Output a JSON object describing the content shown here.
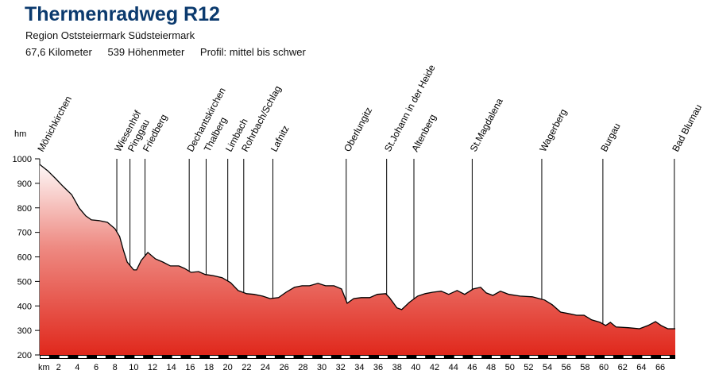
{
  "header": {
    "title": "Thermenradweg R12",
    "region": "Region Oststeiermark Südsteiermark",
    "distance": "67,6 Kilometer",
    "ascent": "539 Höhenmeter",
    "profile": "Profil: mittel bis schwer"
  },
  "chart_data": {
    "type": "area",
    "title": "Thermenradweg R12",
    "xlabel": "km",
    "ylabel": "hm",
    "xlim": [
      0,
      67.6
    ],
    "ylim": [
      200,
      1000
    ],
    "xticks": [
      2,
      4,
      6,
      8,
      10,
      12,
      14,
      16,
      18,
      20,
      22,
      24,
      26,
      28,
      30,
      32,
      34,
      36,
      38,
      40,
      42,
      44,
      46,
      48,
      50,
      52,
      54,
      56,
      58,
      60,
      62,
      64,
      66
    ],
    "yticks": [
      200,
      300,
      400,
      500,
      600,
      700,
      800,
      900,
      1000
    ],
    "colors": {
      "fill_top": "#ffffff",
      "fill_mid": "#ee8a82",
      "fill_bottom": "#e0281c",
      "line": "#000000"
    },
    "elevation": [
      [
        0,
        977
      ],
      [
        0.85,
        951
      ],
      [
        1.7,
        919
      ],
      [
        2.5,
        887
      ],
      [
        3.4,
        854
      ],
      [
        4.2,
        799
      ],
      [
        4.9,
        767
      ],
      [
        5.5,
        751
      ],
      [
        6.3,
        748
      ],
      [
        7.2,
        741
      ],
      [
        8.0,
        715
      ],
      [
        8.5,
        683
      ],
      [
        8.9,
        628
      ],
      [
        9.3,
        579
      ],
      [
        10.0,
        547
      ],
      [
        10.3,
        547
      ],
      [
        10.8,
        586
      ],
      [
        11.5,
        618
      ],
      [
        12.3,
        592
      ],
      [
        13.1,
        579
      ],
      [
        13.9,
        563
      ],
      [
        14.8,
        563
      ],
      [
        15.4,
        553
      ],
      [
        16.1,
        537
      ],
      [
        16.9,
        540
      ],
      [
        17.6,
        528
      ],
      [
        18.4,
        524
      ],
      [
        19.4,
        515
      ],
      [
        20.3,
        495
      ],
      [
        21.1,
        463
      ],
      [
        22.0,
        450
      ],
      [
        22.8,
        447
      ],
      [
        23.7,
        440
      ],
      [
        24.5,
        430
      ],
      [
        25.4,
        434
      ],
      [
        26.2,
        456
      ],
      [
        27.1,
        476
      ],
      [
        27.9,
        482
      ],
      [
        28.7,
        482
      ],
      [
        29.6,
        492
      ],
      [
        30.4,
        482
      ],
      [
        31.3,
        482
      ],
      [
        32.1,
        469
      ],
      [
        32.7,
        411
      ],
      [
        33.4,
        430
      ],
      [
        34.2,
        434
      ],
      [
        35.1,
        434
      ],
      [
        35.9,
        447
      ],
      [
        36.8,
        450
      ],
      [
        37.2,
        434
      ],
      [
        38.0,
        392
      ],
      [
        38.5,
        385
      ],
      [
        39.3,
        414
      ],
      [
        40.2,
        440
      ],
      [
        41.0,
        450
      ],
      [
        41.8,
        456
      ],
      [
        42.7,
        460
      ],
      [
        43.5,
        447
      ],
      [
        44.4,
        463
      ],
      [
        45.2,
        447
      ],
      [
        46.1,
        469
      ],
      [
        46.9,
        476
      ],
      [
        47.5,
        453
      ],
      [
        48.2,
        443
      ],
      [
        49.0,
        460
      ],
      [
        49.9,
        447
      ],
      [
        51.1,
        440
      ],
      [
        52.4,
        437
      ],
      [
        53.7,
        424
      ],
      [
        54.5,
        405
      ],
      [
        55.4,
        375
      ],
      [
        56.2,
        369
      ],
      [
        57.1,
        362
      ],
      [
        57.9,
        362
      ],
      [
        58.7,
        343
      ],
      [
        59.6,
        333
      ],
      [
        60.2,
        320
      ],
      [
        60.7,
        333
      ],
      [
        61.3,
        314
      ],
      [
        62.6,
        311
      ],
      [
        63.8,
        307
      ],
      [
        64.7,
        320
      ],
      [
        65.5,
        336
      ],
      [
        66.1,
        320
      ],
      [
        66.8,
        307
      ],
      [
        67.6,
        307
      ]
    ],
    "stations": [
      {
        "name": "Mönichkirchen",
        "km": 0
      },
      {
        "name": "Wiesenhöf",
        "km": 8.2
      },
      {
        "name": "Pinggau",
        "km": 9.6
      },
      {
        "name": "Friedberg",
        "km": 11.2
      },
      {
        "name": "Dechantskirchen",
        "km": 15.9
      },
      {
        "name": "Thalberg",
        "km": 17.7
      },
      {
        "name": "Limbach",
        "km": 20.0
      },
      {
        "name": "Rohrbach/Schlag",
        "km": 21.7
      },
      {
        "name": "Lafnitz",
        "km": 24.8
      },
      {
        "name": "Oberlungitz",
        "km": 32.6
      },
      {
        "name": "St.Johann in der Heide",
        "km": 36.9
      },
      {
        "name": "Altenberg",
        "km": 39.8
      },
      {
        "name": "St.Magdalena",
        "km": 46.0
      },
      {
        "name": "Wagerberg",
        "km": 53.4
      },
      {
        "name": "Burgau",
        "km": 59.9
      },
      {
        "name": "Bad Blumau",
        "km": 67.5
      }
    ]
  }
}
